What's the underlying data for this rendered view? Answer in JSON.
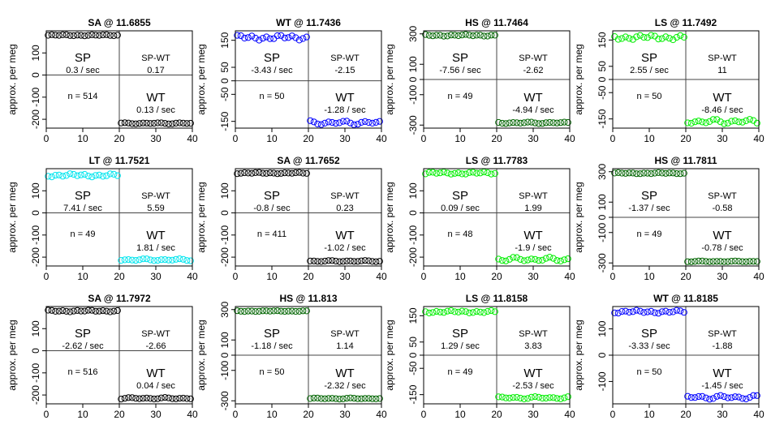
{
  "figure": {
    "ylabel": "approx. per meg"
  },
  "chart_data": [
    {
      "type": "scatter",
      "title": "SA @ 11.6855",
      "color": "#000000",
      "xlim": [
        0,
        40
      ],
      "ylim": [
        -240,
        200
      ],
      "xticks": [
        0,
        10,
        20,
        30,
        40
      ],
      "yticks": [
        -200,
        -100,
        0,
        100
      ],
      "sp_level": 180,
      "wt_level": -218,
      "sp_amp": 3,
      "wt_amp": 3,
      "sp_label": "SP",
      "sp_rate": "0.3 / sec",
      "diff_label": "SP-WT",
      "diff_value": "0.17",
      "n_text": "n = 514",
      "wt_label": "WT",
      "wt_rate": "0.13 / sec"
    },
    {
      "type": "scatter",
      "title": "WT @ 11.7436",
      "color": "#0000ff",
      "xlim": [
        0,
        40
      ],
      "ylim": [
        -175,
        185
      ],
      "xticks": [
        0,
        10,
        20,
        30,
        40
      ],
      "yticks": [
        -150,
        -50,
        0,
        50,
        150
      ],
      "sp_level": 160,
      "wt_level": -155,
      "sp_amp": 10,
      "wt_amp": 8,
      "sp_label": "SP",
      "sp_rate": "-3.43 / sec",
      "diff_label": "SP-WT",
      "diff_value": "-2.15",
      "n_text": "n = 50",
      "wt_label": "WT",
      "wt_rate": "-1.28 / sec"
    },
    {
      "type": "scatter",
      "title": "HS @ 11.7464",
      "color": "#006400",
      "xlim": [
        0,
        40
      ],
      "ylim": [
        -320,
        320
      ],
      "xticks": [
        0,
        10,
        20,
        30,
        40
      ],
      "yticks": [
        -300,
        -100,
        0,
        100,
        300
      ],
      "sp_level": 290,
      "wt_level": -285,
      "sp_amp": 6,
      "wt_amp": 6,
      "sp_label": "SP",
      "sp_rate": "-7.56 / sec",
      "diff_label": "SP-WT",
      "diff_value": "-2.62",
      "n_text": "n = 49",
      "wt_label": "WT",
      "wt_rate": "-4.94 / sec"
    },
    {
      "type": "scatter",
      "title": "LS @ 11.7492",
      "color": "#00ee00",
      "xlim": [
        0,
        40
      ],
      "ylim": [
        -185,
        185
      ],
      "xticks": [
        0,
        10,
        20,
        30,
        40
      ],
      "yticks": [
        -150,
        -50,
        0,
        50,
        150
      ],
      "sp_level": 160,
      "wt_level": -160,
      "sp_amp": 10,
      "wt_amp": 10,
      "sp_label": "SP",
      "sp_rate": "2.55 / sec",
      "diff_label": "SP-WT",
      "diff_value": "11",
      "n_text": "n = 50",
      "wt_label": "WT",
      "wt_rate": "-8.46 / sec"
    },
    {
      "type": "scatter",
      "title": "LT @ 11.7521",
      "color": "#00e5ee",
      "xlim": [
        0,
        40
      ],
      "ylim": [
        -240,
        200
      ],
      "xticks": [
        0,
        10,
        20,
        30,
        40
      ],
      "yticks": [
        -200,
        -100,
        0,
        100
      ],
      "sp_level": 170,
      "wt_level": -212,
      "sp_amp": 8,
      "wt_amp": 5,
      "sp_label": "SP",
      "sp_rate": "7.41 / sec",
      "diff_label": "SP-WT",
      "diff_value": "5.59",
      "n_text": "n = 49",
      "wt_label": "WT",
      "wt_rate": "1.81 / sec"
    },
    {
      "type": "scatter",
      "title": "SA @ 11.7652",
      "color": "#000000",
      "xlim": [
        0,
        40
      ],
      "ylim": [
        -240,
        200
      ],
      "xticks": [
        0,
        10,
        20,
        30,
        40
      ],
      "yticks": [
        -200,
        -100,
        0,
        100
      ],
      "sp_level": 180,
      "wt_level": -218,
      "sp_amp": 3,
      "wt_amp": 3,
      "sp_label": "SP",
      "sp_rate": "-0.8 / sec",
      "diff_label": "SP-WT",
      "diff_value": "0.23",
      "n_text": "n = 411",
      "wt_label": "WT",
      "wt_rate": "-1.02 / sec"
    },
    {
      "type": "scatter",
      "title": "LS @ 11.7783",
      "color": "#00ee00",
      "xlim": [
        0,
        40
      ],
      "ylim": [
        -240,
        200
      ],
      "xticks": [
        0,
        10,
        20,
        30,
        40
      ],
      "yticks": [
        -200,
        -100,
        0,
        100
      ],
      "sp_level": 180,
      "wt_level": -210,
      "sp_amp": 6,
      "wt_amp": 10,
      "sp_label": "SP",
      "sp_rate": "0.09 / sec",
      "diff_label": "SP-WT",
      "diff_value": "1.99",
      "n_text": "n = 48",
      "wt_label": "WT",
      "wt_rate": "-1.9 / sec"
    },
    {
      "type": "scatter",
      "title": "HS @ 11.7811",
      "color": "#006400",
      "xlim": [
        0,
        40
      ],
      "ylim": [
        -320,
        320
      ],
      "xticks": [
        0,
        10,
        20,
        30,
        40
      ],
      "yticks": [
        -300,
        -100,
        0,
        100,
        300
      ],
      "sp_level": 290,
      "wt_level": -290,
      "sp_amp": 4,
      "wt_amp": 3,
      "sp_label": "SP",
      "sp_rate": "-1.37 / sec",
      "diff_label": "SP-WT",
      "diff_value": "-0.58",
      "n_text": "n = 49",
      "wt_label": "WT",
      "wt_rate": "-0.78 / sec"
    },
    {
      "type": "scatter",
      "title": "SA @ 11.7972",
      "color": "#000000",
      "xlim": [
        0,
        40
      ],
      "ylim": [
        -240,
        200
      ],
      "xticks": [
        0,
        10,
        20,
        30,
        40
      ],
      "yticks": [
        -200,
        -100,
        0,
        100
      ],
      "sp_level": 180,
      "wt_level": -215,
      "sp_amp": 4,
      "wt_amp": 4,
      "sp_label": "SP",
      "sp_rate": "-2.62 / sec",
      "diff_label": "SP-WT",
      "diff_value": "-2.66",
      "n_text": "n = 516",
      "wt_label": "WT",
      "wt_rate": "0.04 / sec"
    },
    {
      "type": "scatter",
      "title": "HS @ 11.813",
      "color": "#006400",
      "xlim": [
        0,
        40
      ],
      "ylim": [
        -320,
        320
      ],
      "xticks": [
        0,
        10,
        20,
        30,
        40
      ],
      "yticks": [
        -300,
        -100,
        0,
        100,
        300
      ],
      "sp_level": 290,
      "wt_level": -285,
      "sp_amp": 3,
      "wt_amp": 4,
      "sp_label": "SP",
      "sp_rate": "-1.18 / sec",
      "diff_label": "SP-WT",
      "diff_value": "1.14",
      "n_text": "n = 50",
      "wt_label": "WT",
      "wt_rate": "-2.32 / sec"
    },
    {
      "type": "scatter",
      "title": "LS @ 11.8158",
      "color": "#00ee00",
      "xlim": [
        0,
        40
      ],
      "ylim": [
        -185,
        185
      ],
      "xticks": [
        0,
        10,
        20,
        30,
        40
      ],
      "yticks": [
        -150,
        -50,
        0,
        50,
        150
      ],
      "sp_level": 165,
      "wt_level": -162,
      "sp_amp": 5,
      "wt_amp": 5,
      "sp_label": "SP",
      "sp_rate": "1.29 / sec",
      "diff_label": "SP-WT",
      "diff_value": "3.83",
      "n_text": "n = 49",
      "wt_label": "WT",
      "wt_rate": "-2.53 / sec"
    },
    {
      "type": "scatter",
      "title": "WT @ 11.8185",
      "color": "#0000ff",
      "xlim": [
        0,
        40
      ],
      "ylim": [
        -185,
        185
      ],
      "xticks": [
        0,
        10,
        20,
        30,
        40
      ],
      "yticks": [
        -100,
        0,
        100
      ],
      "sp_level": 165,
      "wt_level": -160,
      "sp_amp": 6,
      "wt_amp": 8,
      "sp_label": "SP",
      "sp_rate": "-3.33 / sec",
      "diff_label": "SP-WT",
      "diff_value": "-1.88",
      "n_text": "n = 50",
      "wt_label": "WT",
      "wt_rate": "-1.45 / sec"
    }
  ]
}
